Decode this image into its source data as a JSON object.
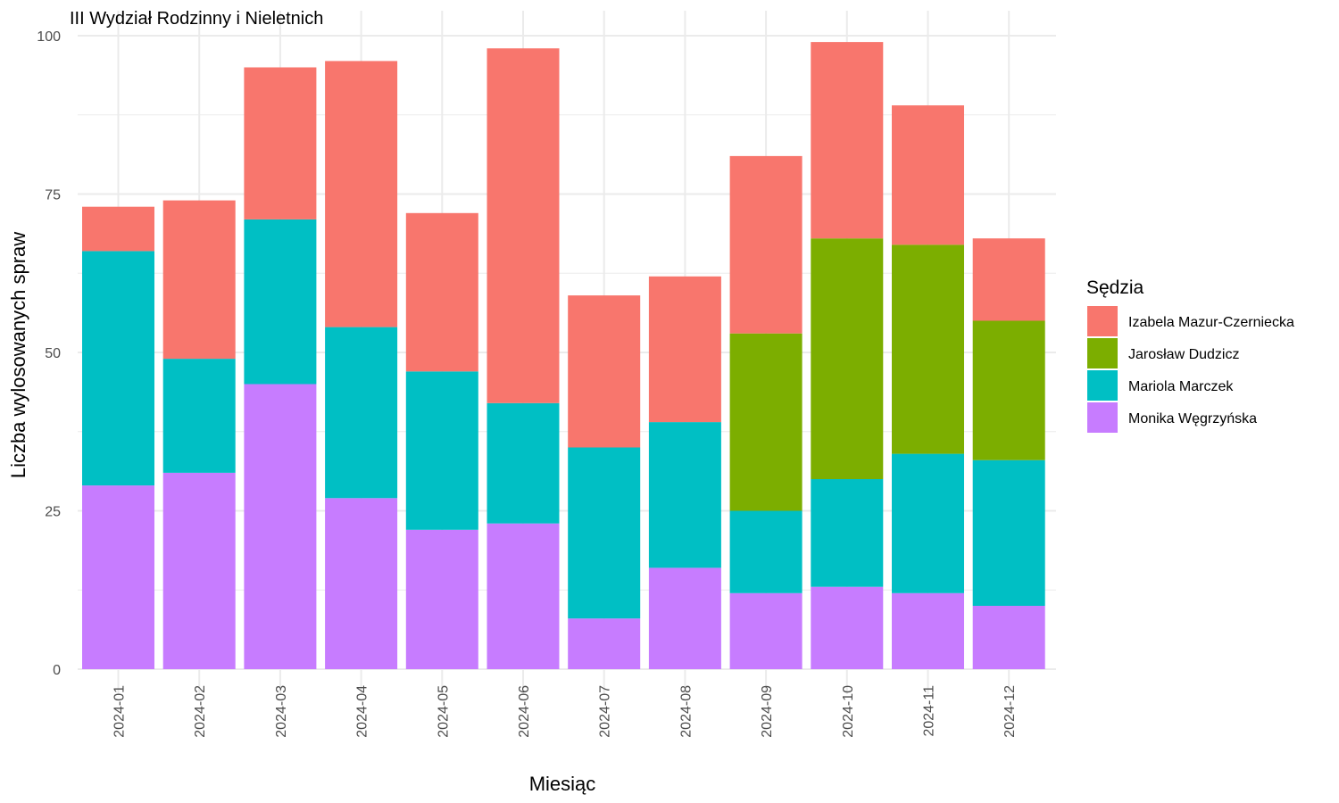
{
  "chart_data": {
    "type": "bar",
    "stacked": true,
    "title": "III Wydział Rodzinny i Nieletnich",
    "xlabel": "Miesiąc",
    "ylabel": "Liczba wylosowanych spraw",
    "ylim": [
      0,
      100
    ],
    "yticks": [
      0,
      25,
      50,
      75,
      100
    ],
    "grid": true,
    "categories": [
      "2024-01",
      "2024-02",
      "2024-03",
      "2024-04",
      "2024-05",
      "2024-06",
      "2024-07",
      "2024-08",
      "2024-09",
      "2024-10",
      "2024-11",
      "2024-12"
    ],
    "stack_order_bottom_to_top": [
      "Monika Węgrzyńska",
      "Mariola Marczek",
      "Jarosław Dudzicz",
      "Izabela Mazur-Czerniecka"
    ],
    "legend": {
      "title": "Sędzia",
      "position": "right",
      "entries": [
        "Izabela Mazur-Czerniecka",
        "Jarosław Dudzicz",
        "Mariola Marczek",
        "Monika Węgrzyńska"
      ]
    },
    "series": [
      {
        "name": "Izabela Mazur-Czerniecka",
        "color": "#F8766D",
        "values": [
          7,
          25,
          24,
          42,
          25,
          56,
          24,
          23,
          28,
          31,
          22,
          13
        ]
      },
      {
        "name": "Jarosław Dudzicz",
        "color": "#7CAE00",
        "values": [
          0,
          0,
          0,
          0,
          0,
          0,
          0,
          0,
          28,
          38,
          33,
          22
        ]
      },
      {
        "name": "Mariola Marczek",
        "color": "#00BFC4",
        "values": [
          37,
          18,
          26,
          27,
          25,
          19,
          27,
          23,
          13,
          17,
          22,
          23
        ]
      },
      {
        "name": "Monika Węgrzyńska",
        "color": "#C77CFF",
        "values": [
          29,
          31,
          45,
          27,
          22,
          23,
          8,
          16,
          12,
          13,
          12,
          10
        ]
      }
    ]
  }
}
